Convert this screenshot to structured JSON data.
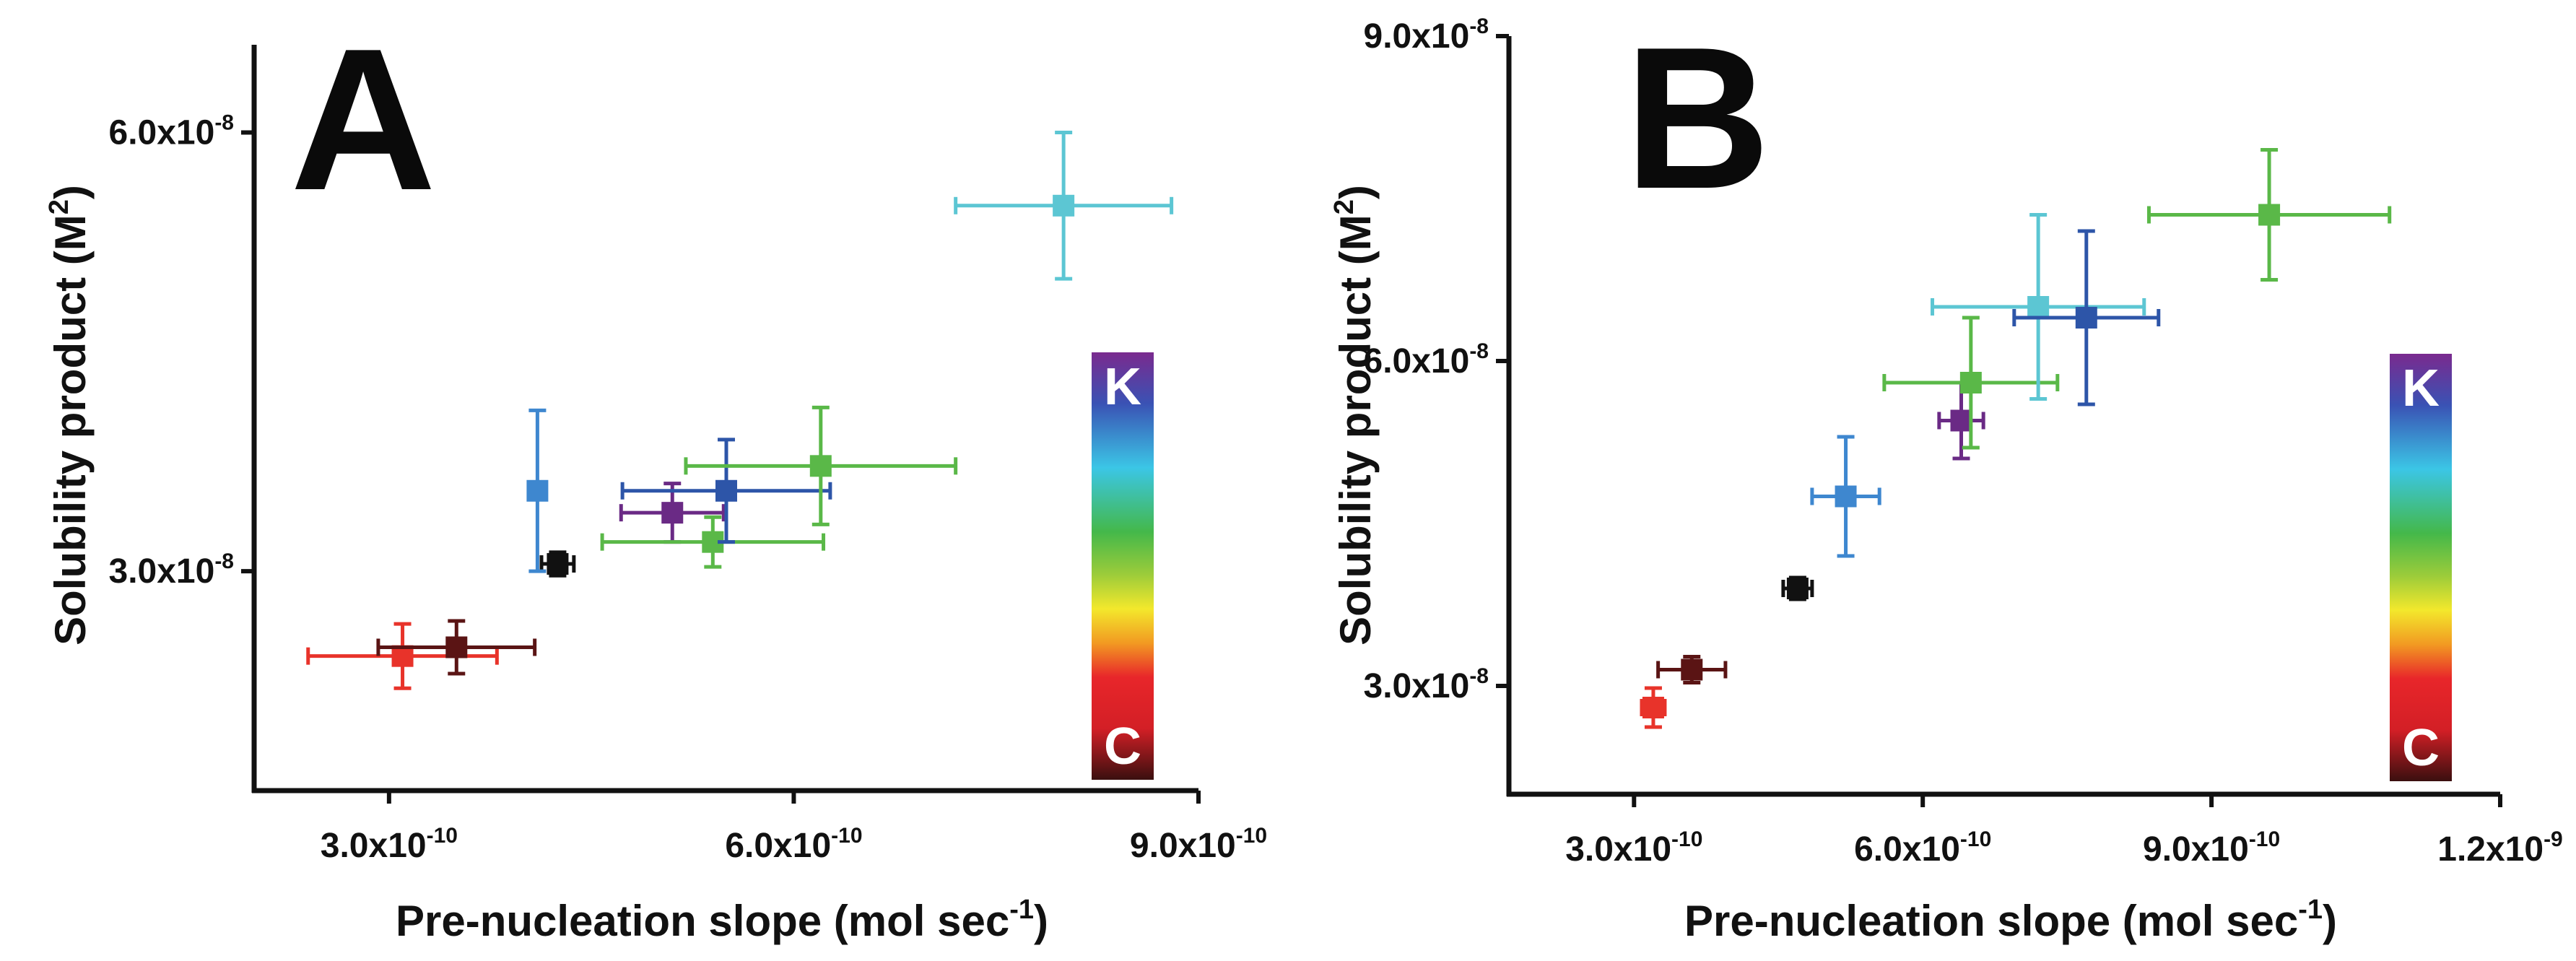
{
  "chart_data": [
    {
      "type": "scatter",
      "panel": "A",
      "xlabel": "Pre-nucleation slope (mol sec",
      "xlabel_sup": "-1",
      "xlabel_end": ")",
      "ylabel": "Solubility product (M",
      "ylabel_sup": "2",
      "ylabel_end": ")",
      "xlim": [
        2e-10,
        9e-10
      ],
      "ylim": [
        1.5e-08,
        6.6e-08
      ],
      "xticks": [
        {
          "value": 3e-10,
          "mant": "3.0x10",
          "exp": "-10"
        },
        {
          "value": 6e-10,
          "mant": "6.0x10",
          "exp": "-10"
        },
        {
          "value": 9e-10,
          "mant": "9.0x10",
          "exp": "-10"
        }
      ],
      "yticks": [
        {
          "value": 3e-08,
          "mant": "3.0x10",
          "exp": "-8"
        },
        {
          "value": 6e-08,
          "mant": "6.0x10",
          "exp": "-8"
        }
      ],
      "points": [
        {
          "name": "red",
          "color": "#e8332a",
          "x": 3.1e-10,
          "y": 2.42e-08,
          "xerr": 7e-11,
          "yerr": 2.2e-09
        },
        {
          "name": "dark-red",
          "color": "#5a1414",
          "x": 3.5e-10,
          "y": 2.48e-08,
          "xerr": 5.8e-11,
          "yerr": 1.8e-09
        },
        {
          "name": "black",
          "color": "#111111",
          "x": 4.25e-10,
          "y": 3.05e-08,
          "xerr": 1.2e-11,
          "yerr": 8e-10
        },
        {
          "name": "light-blue",
          "color": "#3e87cf",
          "x": 4.1e-10,
          "y": 3.55e-08,
          "xerr": 6e-12,
          "yerr": 5.5e-09
        },
        {
          "name": "purple",
          "color": "#6a2a85",
          "x": 5.1e-10,
          "y": 3.4e-08,
          "xerr": 3.8e-11,
          "yerr": 2e-09
        },
        {
          "name": "green-low",
          "color": "#5ab848",
          "x": 5.4e-10,
          "y": 3.2e-08,
          "xerr": 8.2e-11,
          "yerr": 1.7e-09
        },
        {
          "name": "blue",
          "color": "#2d55a8",
          "x": 5.5e-10,
          "y": 3.55e-08,
          "xerr": 7.7e-11,
          "yerr": 3.5e-09
        },
        {
          "name": "green",
          "color": "#5ab848",
          "x": 6.2e-10,
          "y": 3.72e-08,
          "xerr": 1e-10,
          "yerr": 4e-09
        },
        {
          "name": "cyan",
          "color": "#5cc6d3",
          "x": 8e-10,
          "y": 5.5e-08,
          "xerr": 8e-11,
          "yerr": 5e-09
        }
      ],
      "colorbar": {
        "top_label": "K",
        "bottom_label": "C"
      },
      "panel_label": "A"
    },
    {
      "type": "scatter",
      "panel": "B",
      "xlabel": "Pre-nucleation slope (mol sec",
      "xlabel_sup": "-1",
      "xlabel_end": ")",
      "ylabel": "Solubility product (M",
      "ylabel_sup": "2",
      "ylabel_end": ")",
      "xlim": [
        1.7e-10,
        1.2e-09
      ],
      "ylim": [
        2e-08,
        9e-08
      ],
      "xticks": [
        {
          "value": 3e-10,
          "mant": "3.0x10",
          "exp": "-10"
        },
        {
          "value": 6e-10,
          "mant": "6.0x10",
          "exp": "-10"
        },
        {
          "value": 9e-10,
          "mant": "9.0x10",
          "exp": "-10"
        },
        {
          "value": 1.2e-09,
          "mant": "1.2x10",
          "exp": "-9"
        }
      ],
      "yticks": [
        {
          "value": 3e-08,
          "mant": "3.0x10",
          "exp": "-8"
        },
        {
          "value": 6e-08,
          "mant": "6.0x10",
          "exp": "-8"
        },
        {
          "value": 9e-08,
          "mant": "9.0x10",
          "exp": "-8"
        }
      ],
      "points": [
        {
          "name": "red",
          "color": "#e8332a",
          "x": 3.2e-10,
          "y": 2.8e-08,
          "xerr": 1.2e-11,
          "yerr": 1.8e-09
        },
        {
          "name": "dark-red",
          "color": "#5a1414",
          "x": 3.6e-10,
          "y": 3.15e-08,
          "xerr": 3.5e-11,
          "yerr": 1.2e-09
        },
        {
          "name": "black",
          "color": "#111111",
          "x": 4.7e-10,
          "y": 3.9e-08,
          "xerr": 1.5e-11,
          "yerr": 1e-09
        },
        {
          "name": "light-blue",
          "color": "#3e87cf",
          "x": 5.2e-10,
          "y": 4.75e-08,
          "xerr": 3.5e-11,
          "yerr": 5.5e-09
        },
        {
          "name": "purple",
          "color": "#6a2a85",
          "x": 6.4e-10,
          "y": 5.45e-08,
          "xerr": 2.3e-11,
          "yerr": 3.5e-09
        },
        {
          "name": "green-mid",
          "color": "#5ab848",
          "x": 6.5e-10,
          "y": 5.8e-08,
          "xerr": 9e-11,
          "yerr": 6e-09
        },
        {
          "name": "cyan",
          "color": "#5cc6d3",
          "x": 7.2e-10,
          "y": 6.5e-08,
          "xerr": 1.1e-10,
          "yerr": 8.5e-09
        },
        {
          "name": "blue",
          "color": "#2d55a8",
          "x": 7.7e-10,
          "y": 6.4e-08,
          "xerr": 7.5e-11,
          "yerr": 8e-09
        },
        {
          "name": "green",
          "color": "#5ab848",
          "x": 9.6e-10,
          "y": 7.35e-08,
          "xerr": 1.25e-10,
          "yerr": 6e-09
        }
      ],
      "colorbar": {
        "top_label": "K",
        "bottom_label": "C"
      },
      "panel_label": "B"
    }
  ]
}
